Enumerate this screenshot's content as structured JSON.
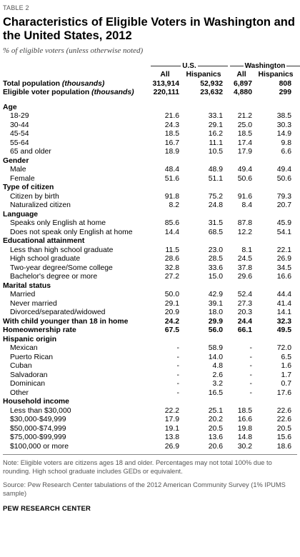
{
  "table_label": "TABLE 2",
  "title": "Characteristics of Eligible Voters in Washington and the United States, 2012",
  "subtitle": "% of eligible voters (unless otherwise noted)",
  "groups": {
    "us": "U.S.",
    "wa": "Washington"
  },
  "columns": [
    "All",
    "Hispanics",
    "All",
    "Hispanics"
  ],
  "totals": [
    {
      "label": "Total population",
      "note": "(thousands)",
      "values": [
        "313,914",
        "52,932",
        "6,897",
        "808"
      ]
    },
    {
      "label": "Eligible voter population",
      "note": "(thousands)",
      "values": [
        "220,111",
        "23,632",
        "4,880",
        "299"
      ]
    }
  ],
  "sections": [
    {
      "title": "Age",
      "rows": [
        {
          "label": "18-29",
          "values": [
            "21.6",
            "33.1",
            "21.2",
            "38.5"
          ]
        },
        {
          "label": "30-44",
          "values": [
            "24.3",
            "29.1",
            "25.0",
            "30.3"
          ]
        },
        {
          "label": "45-54",
          "values": [
            "18.5",
            "16.2",
            "18.5",
            "14.9"
          ]
        },
        {
          "label": "55-64",
          "values": [
            "16.7",
            "11.1",
            "17.4",
            "9.8"
          ]
        },
        {
          "label": "65 and older",
          "values": [
            "18.9",
            "10.5",
            "17.9",
            "6.6"
          ]
        }
      ]
    },
    {
      "title": "Gender",
      "rows": [
        {
          "label": "Male",
          "values": [
            "48.4",
            "48.9",
            "49.4",
            "49.4"
          ]
        },
        {
          "label": "Female",
          "values": [
            "51.6",
            "51.1",
            "50.6",
            "50.6"
          ]
        }
      ]
    },
    {
      "title": "Type of citizen",
      "rows": [
        {
          "label": "Citizen by birth",
          "values": [
            "91.8",
            "75.2",
            "91.6",
            "79.3"
          ]
        },
        {
          "label": "Naturalized citizen",
          "values": [
            "8.2",
            "24.8",
            "8.4",
            "20.7"
          ]
        }
      ]
    },
    {
      "title": "Language",
      "rows": [
        {
          "label": "Speaks only English at home",
          "values": [
            "85.6",
            "31.5",
            "87.8",
            "45.9"
          ]
        },
        {
          "label": "Does not speak only English at home",
          "values": [
            "14.4",
            "68.5",
            "12.2",
            "54.1"
          ]
        }
      ]
    },
    {
      "title": "Educational attainment",
      "rows": [
        {
          "label": "Less than high school graduate",
          "values": [
            "11.5",
            "23.0",
            "8.1",
            "22.1"
          ]
        },
        {
          "label": "High school graduate",
          "values": [
            "28.6",
            "28.5",
            "24.5",
            "26.9"
          ]
        },
        {
          "label": "Two-year degree/Some college",
          "values": [
            "32.8",
            "33.6",
            "37.8",
            "34.5"
          ]
        },
        {
          "label": "Bachelor's degree or more",
          "values": [
            "27.2",
            "15.0",
            "29.6",
            "16.6"
          ]
        }
      ]
    },
    {
      "title": "Marital status",
      "rows": [
        {
          "label": "Married",
          "values": [
            "50.0",
            "42.9",
            "52.4",
            "44.4"
          ]
        },
        {
          "label": "Never married",
          "values": [
            "29.1",
            "39.1",
            "27.3",
            "41.4"
          ]
        },
        {
          "label": "Divorced/separated/widowed",
          "values": [
            "20.9",
            "18.0",
            "20.3",
            "14.1"
          ]
        }
      ]
    },
    {
      "title": "With child younger than 18 in home",
      "values": [
        "24.2",
        "29.9",
        "24.4",
        "32.3"
      ],
      "rows": []
    },
    {
      "title": "Homeownership rate",
      "values": [
        "67.5",
        "56.0",
        "66.1",
        "49.5"
      ],
      "rows": []
    },
    {
      "title": "Hispanic origin",
      "rows": [
        {
          "label": "Mexican",
          "values": [
            "-",
            "58.9",
            "-",
            "72.0"
          ]
        },
        {
          "label": "Puerto Rican",
          "values": [
            "-",
            "14.0",
            "-",
            "6.5"
          ]
        },
        {
          "label": "Cuban",
          "values": [
            "-",
            "4.8",
            "-",
            "1.6"
          ]
        },
        {
          "label": "Salvadoran",
          "values": [
            "-",
            "2.6",
            "-",
            "1.7"
          ]
        },
        {
          "label": "Dominican",
          "values": [
            "-",
            "3.2",
            "-",
            "0.7"
          ]
        },
        {
          "label": "Other",
          "values": [
            "-",
            "16.5",
            "-",
            "17.6"
          ]
        }
      ]
    },
    {
      "title": "Household income",
      "rows": [
        {
          "label": "Less than $30,000",
          "values": [
            "22.2",
            "25.1",
            "18.5",
            "22.6"
          ]
        },
        {
          "label": "$30,000-$49,999",
          "values": [
            "17.9",
            "20.2",
            "16.6",
            "22.6"
          ]
        },
        {
          "label": "$50,000-$74,999",
          "values": [
            "19.1",
            "20.5",
            "19.8",
            "20.5"
          ]
        },
        {
          "label": "$75,000-$99,999",
          "values": [
            "13.8",
            "13.6",
            "14.8",
            "15.6"
          ]
        },
        {
          "label": "$100,000 or more",
          "values": [
            "26.9",
            "20.6",
            "30.2",
            "18.6"
          ]
        }
      ]
    }
  ],
  "footnote": "Note: Eligible voters are citizens ages 18 and older. Percentages may not total 100% due to rounding. High school graduate includes GEDs or equivalent.",
  "source": "Source: Pew Research Center tabulations of the 2012 American Community Survey (1% IPUMS sample)",
  "organization": "PEW RESEARCH CENTER"
}
